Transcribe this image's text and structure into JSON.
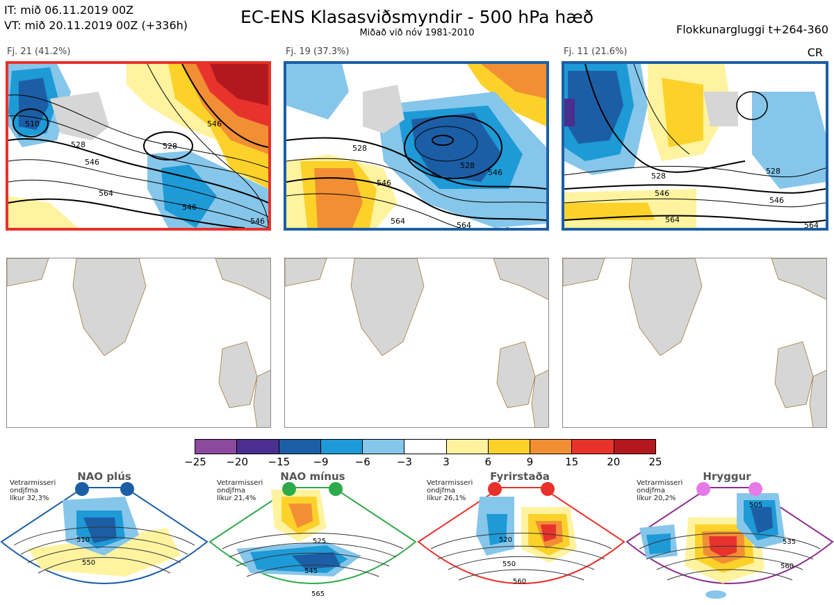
{
  "header": {
    "it_line": "IT: mið 06.11.2019 00Z",
    "vt_line": "VT: mið 20.11.2019 00Z  (+336h)",
    "title": "EC-ENS Klasasviðsmyndir - 500 hPa hæð",
    "subtitle": "Miðað við nóv 1981-2010",
    "window": "Flokkunargluggi t+264-360",
    "tag": "CR"
  },
  "clusters": [
    {
      "label": "Fj. 21 (41.2%)",
      "frame_color": "#e8312a",
      "contours": [
        "510",
        "528",
        "546",
        "564",
        "528",
        "546",
        "546",
        "546"
      ]
    },
    {
      "label": "Fj. 19 (37.3%)",
      "frame_color": "#1c5ea6",
      "contours": [
        "528",
        "546",
        "564",
        "528",
        "546",
        "564"
      ]
    },
    {
      "label": "Fj. 11 (21.6%)",
      "frame_color": "#1c5ea6",
      "contours": [
        "528",
        "546",
        "564",
        "528",
        "546",
        "564"
      ]
    }
  ],
  "colorbar": {
    "ticks": [
      "−25",
      "−20",
      "−15",
      "−9",
      "−6",
      "−3",
      "3",
      "6",
      "9",
      "15",
      "20",
      "25"
    ],
    "colors": [
      "#8b4a9e",
      "#4a2f8f",
      "#1c5ea6",
      "#1e9ad6",
      "#86c6ea",
      "#ffffff",
      "#fff3a0",
      "#fcd22a",
      "#f28f34",
      "#e8332d",
      "#b3181f"
    ]
  },
  "regimes": [
    {
      "title": "NAO plús",
      "info": [
        "Vetrarmisseri",
        "ondjfma",
        "líkur 32,3%"
      ],
      "color": "#1c5ea6",
      "labels": [
        "510",
        "550"
      ]
    },
    {
      "title": "NAO mínus",
      "info": [
        "Vetrarmisseri",
        "ondjfma",
        "líkur 21,4%"
      ],
      "color": "#2eaa4a",
      "labels": [
        "525",
        "545",
        "565"
      ]
    },
    {
      "title": "Fyrirstaða",
      "info": [
        "Vetrarmisseri",
        "ondjfma",
        "líkur 26,1%"
      ],
      "color": "#e8312a",
      "labels": [
        "520",
        "550",
        "560"
      ]
    },
    {
      "title": "Hryggur",
      "info": [
        "Vetrarmisseri",
        "ondjfma",
        "líkur 20,2%"
      ],
      "color": "#e57ae8",
      "labels": [
        "505",
        "535",
        "560"
      ]
    }
  ]
}
